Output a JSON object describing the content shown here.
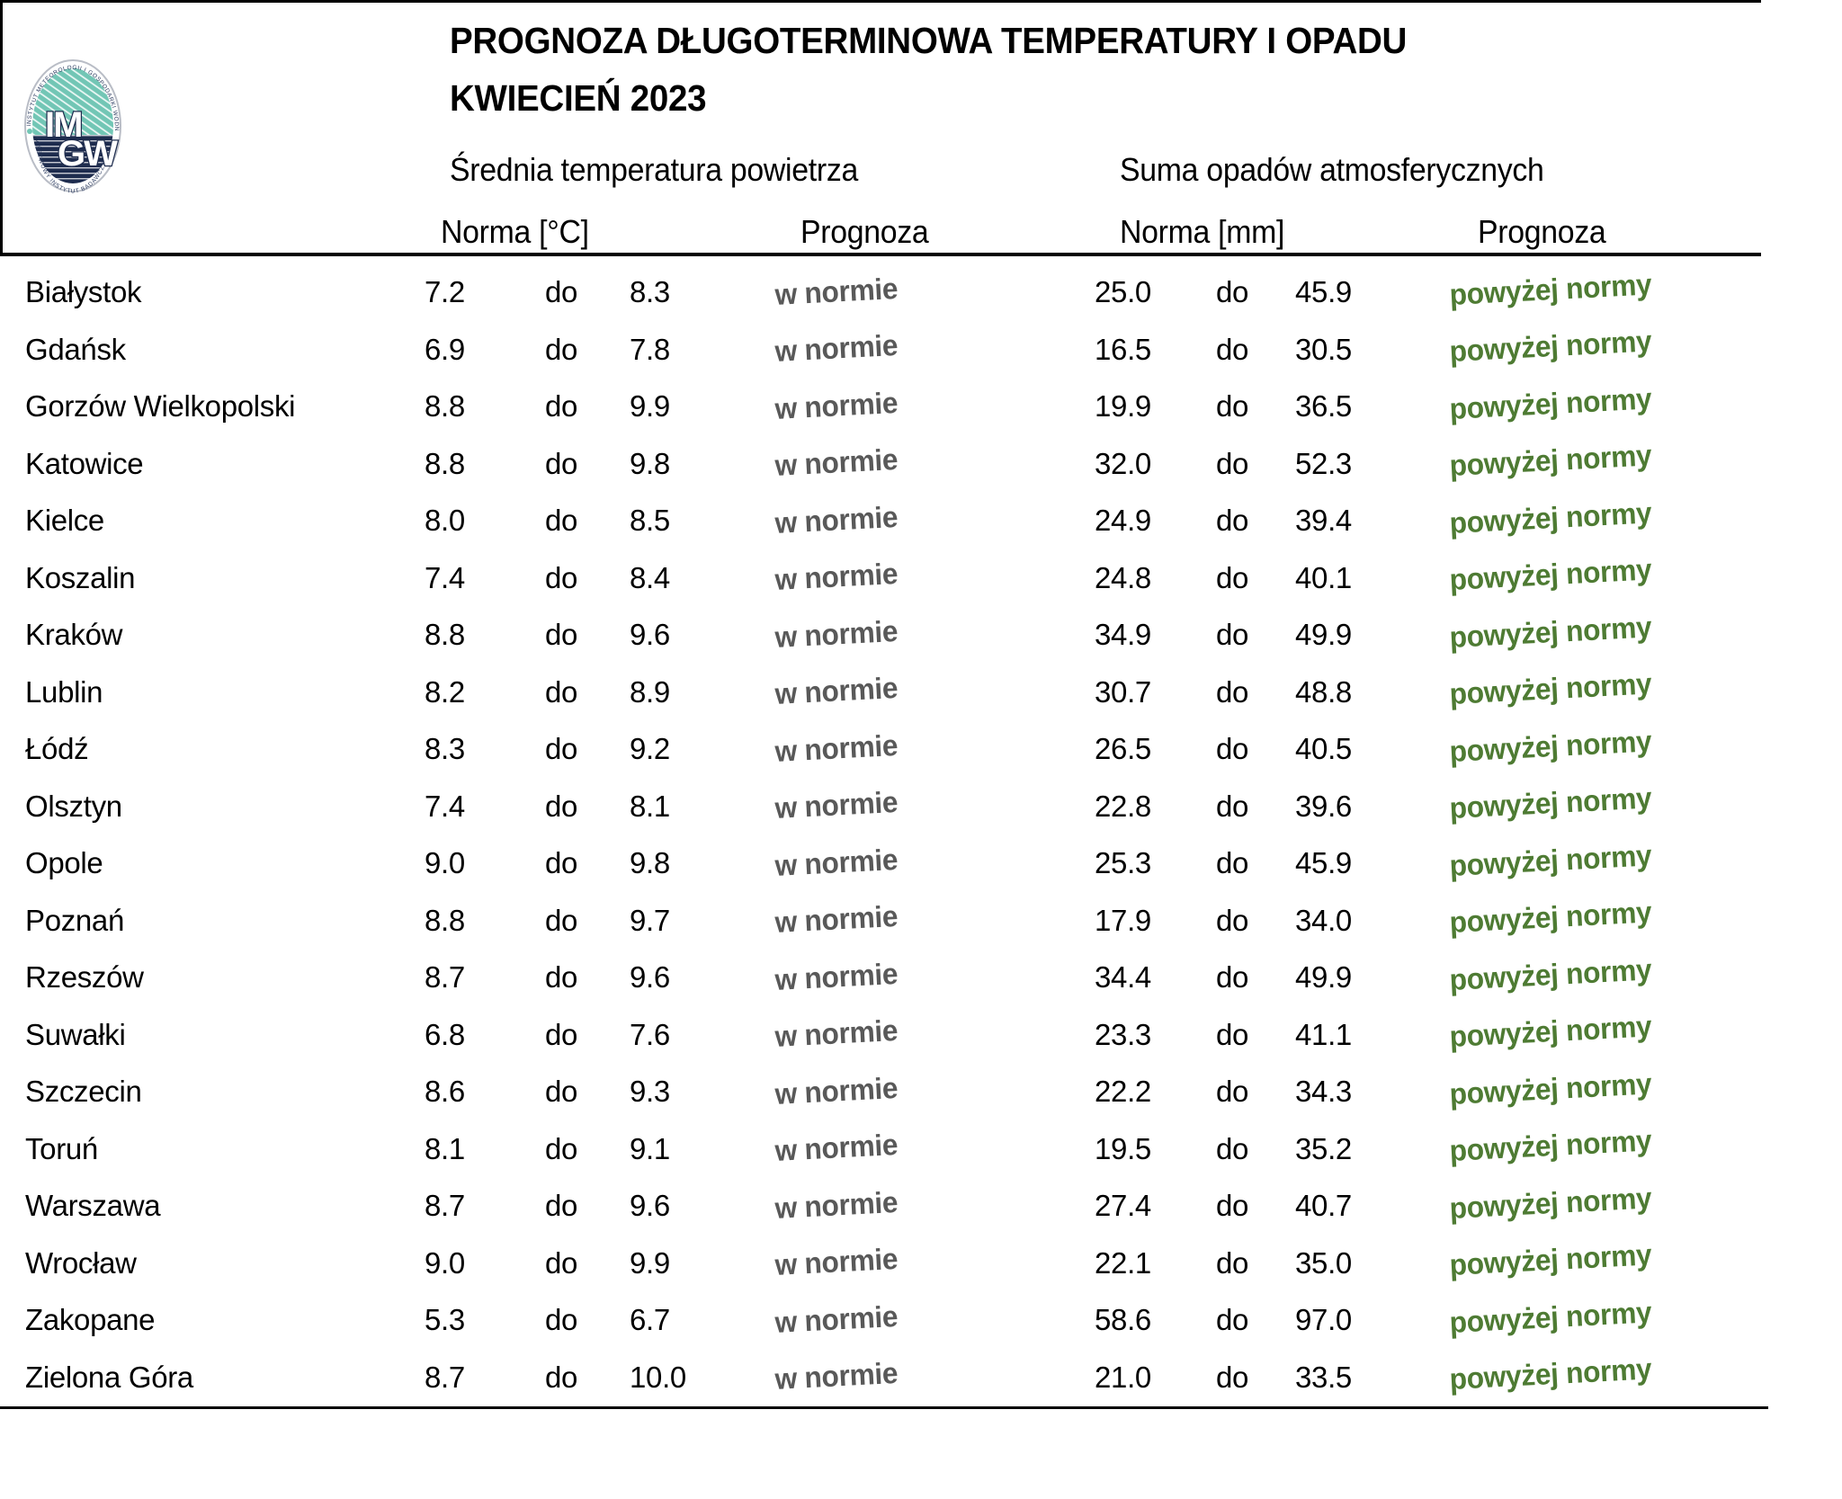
{
  "header": {
    "title": "PROGNOZA DŁUGOTERMINOWA TEMPERATURY I OPADU",
    "subtitle": "KWIECIEŃ 2023",
    "temp_section": "Średnia temperatura powietrza",
    "precip_section": "Suma opadów atmosferycznych",
    "temp_norma_label": "Norma [°C]",
    "temp_prognoza_label": "Prognoza",
    "precip_norma_label": "Norma [mm]",
    "precip_prognoza_label": "Prognoza"
  },
  "logo": {
    "ring_top_text": "INSTYTUT METEOROLOGII I GOSPODARKI WODNEJ",
    "ring_bottom_text": "PAŃSTWOWY INSTYTUT BADAWCZY",
    "letters_top": "IM",
    "letters_bottom": "GW"
  },
  "separator_word": "do",
  "rows": [
    {
      "city": "Białystok",
      "t_min": "7.2",
      "t_max": "8.3",
      "t_prognoza": "w normie",
      "p_min": "25.0",
      "p_max": "45.9",
      "p_prognoza": "powyżej normy"
    },
    {
      "city": "Gdańsk",
      "t_min": "6.9",
      "t_max": "7.8",
      "t_prognoza": "w normie",
      "p_min": "16.5",
      "p_max": "30.5",
      "p_prognoza": "powyżej normy"
    },
    {
      "city": "Gorzów Wielkopolski",
      "t_min": "8.8",
      "t_max": "9.9",
      "t_prognoza": "w normie",
      "p_min": "19.9",
      "p_max": "36.5",
      "p_prognoza": "powyżej normy"
    },
    {
      "city": "Katowice",
      "t_min": "8.8",
      "t_max": "9.8",
      "t_prognoza": "w normie",
      "p_min": "32.0",
      "p_max": "52.3",
      "p_prognoza": "powyżej normy"
    },
    {
      "city": "Kielce",
      "t_min": "8.0",
      "t_max": "8.5",
      "t_prognoza": "w normie",
      "p_min": "24.9",
      "p_max": "39.4",
      "p_prognoza": "powyżej normy"
    },
    {
      "city": "Koszalin",
      "t_min": "7.4",
      "t_max": "8.4",
      "t_prognoza": "w normie",
      "p_min": "24.8",
      "p_max": "40.1",
      "p_prognoza": "powyżej normy"
    },
    {
      "city": "Kraków",
      "t_min": "8.8",
      "t_max": "9.6",
      "t_prognoza": "w normie",
      "p_min": "34.9",
      "p_max": "49.9",
      "p_prognoza": "powyżej normy"
    },
    {
      "city": "Lublin",
      "t_min": "8.2",
      "t_max": "8.9",
      "t_prognoza": "w normie",
      "p_min": "30.7",
      "p_max": "48.8",
      "p_prognoza": "powyżej normy"
    },
    {
      "city": "Łódź",
      "t_min": "8.3",
      "t_max": "9.2",
      "t_prognoza": "w normie",
      "p_min": "26.5",
      "p_max": "40.5",
      "p_prognoza": "powyżej normy"
    },
    {
      "city": "Olsztyn",
      "t_min": "7.4",
      "t_max": "8.1",
      "t_prognoza": "w normie",
      "p_min": "22.8",
      "p_max": "39.6",
      "p_prognoza": "powyżej normy"
    },
    {
      "city": "Opole",
      "t_min": "9.0",
      "t_max": "9.8",
      "t_prognoza": "w normie",
      "p_min": "25.3",
      "p_max": "45.9",
      "p_prognoza": "powyżej normy"
    },
    {
      "city": "Poznań",
      "t_min": "8.8",
      "t_max": "9.7",
      "t_prognoza": "w normie",
      "p_min": "17.9",
      "p_max": "34.0",
      "p_prognoza": "powyżej normy"
    },
    {
      "city": "Rzeszów",
      "t_min": "8.7",
      "t_max": "9.6",
      "t_prognoza": "w normie",
      "p_min": "34.4",
      "p_max": "49.9",
      "p_prognoza": "powyżej normy"
    },
    {
      "city": "Suwałki",
      "t_min": "6.8",
      "t_max": "7.6",
      "t_prognoza": "w normie",
      "p_min": "23.3",
      "p_max": "41.1",
      "p_prognoza": "powyżej normy"
    },
    {
      "city": "Szczecin",
      "t_min": "8.6",
      "t_max": "9.3",
      "t_prognoza": "w normie",
      "p_min": "22.2",
      "p_max": "34.3",
      "p_prognoza": "powyżej normy"
    },
    {
      "city": "Toruń",
      "t_min": "8.1",
      "t_max": "9.1",
      "t_prognoza": "w normie",
      "p_min": "19.5",
      "p_max": "35.2",
      "p_prognoza": "powyżej normy"
    },
    {
      "city": "Warszawa",
      "t_min": "8.7",
      "t_max": "9.6",
      "t_prognoza": "w normie",
      "p_min": "27.4",
      "p_max": "40.7",
      "p_prognoza": "powyżej normy"
    },
    {
      "city": "Wrocław",
      "t_min": "9.0",
      "t_max": "9.9",
      "t_prognoza": "w normie",
      "p_min": "22.1",
      "p_max": "35.0",
      "p_prognoza": "powyżej normy"
    },
    {
      "city": "Zakopane",
      "t_min": "5.3",
      "t_max": "6.7",
      "t_prognoza": "w normie",
      "p_min": "58.6",
      "p_max": "97.0",
      "p_prognoza": "powyżej normy"
    },
    {
      "city": "Zielona Góra",
      "t_min": "8.7",
      "t_max": "10.0",
      "t_prognoza": "w normie",
      "p_min": "21.0",
      "p_max": "33.5",
      "p_prognoza": "powyżej normy"
    }
  ],
  "colors": {
    "normal_gray": "#595959",
    "above_green": "#4e7b33",
    "rule_black": "#000000",
    "logo_teal": "#72c6b5",
    "logo_navy": "#1e2c4e"
  }
}
